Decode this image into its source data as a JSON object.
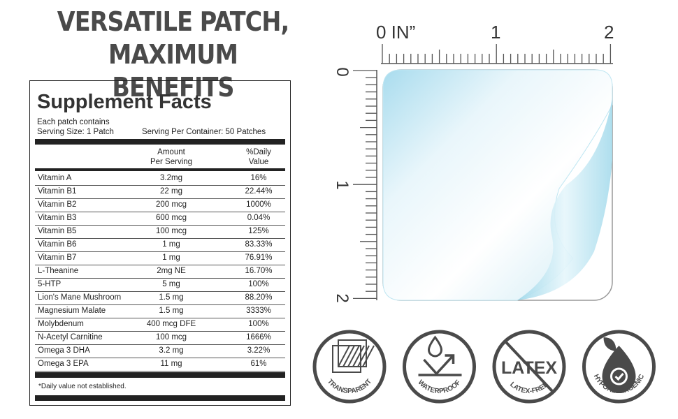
{
  "headline": {
    "line1": "VERSATILE PATCH,",
    "line2": "MAXIMUM BENEFITS"
  },
  "facts": {
    "title": "Supplement Facts",
    "each": "Each patch contains",
    "serving_size": "Serving Size: 1 Patch",
    "per_container": "Serving Per Container: 50 Patches",
    "col_amount": [
      "Amount",
      "Per Serving"
    ],
    "col_dv": [
      "%Daily",
      "Value"
    ],
    "rows": [
      [
        "Vitamin A",
        "3.2mg",
        "16%"
      ],
      [
        "Vitamin B1",
        "22 mg",
        "22.44%"
      ],
      [
        "Vitamin B2",
        "200 mcg",
        "1000%"
      ],
      [
        "Vitamin B3",
        "600 mcg",
        "0.04%"
      ],
      [
        "Vitamin B5",
        "100 mcg",
        "125%"
      ],
      [
        "Vitamin B6",
        "1 mg",
        "83.33%"
      ],
      [
        "Vitamin B7",
        "1 mg",
        "76.91%"
      ],
      [
        "L-Theanine",
        "2mg NE",
        "16.70%"
      ],
      [
        "5-HTP",
        "5 mg",
        "100%"
      ],
      [
        "Lion's Mane Mushroom",
        "1.5 mg",
        "88.20%"
      ],
      [
        "Magnesium Malate",
        "1.5 mg",
        "3333%"
      ],
      [
        "Molybdenum",
        "400 mcg DFE",
        "100%"
      ],
      [
        "N-Acetyl Carnitine",
        "100 mcg",
        "1666%"
      ],
      [
        "Omega 3 DHA",
        "3.2 mg",
        "3.22%"
      ],
      [
        "Omega 3 EPA",
        "11 mg",
        "61%"
      ]
    ],
    "footnote": "*Daily value not established."
  },
  "ruler": {
    "top_labels": [
      "0 IN”",
      "1",
      "2"
    ],
    "left_labels": [
      "0",
      "1",
      "2"
    ]
  },
  "badges": [
    {
      "icon": "transparent-squares-icon",
      "label": "TRANSPARENT"
    },
    {
      "icon": "water-drop-repel-icon",
      "label": "WATERPROOF"
    },
    {
      "icon": "latex-crossed-icon",
      "label": "LATEX-FREE",
      "inner": "LATEX"
    },
    {
      "icon": "leaf-drop-check-icon",
      "label": "HYPOALLERGENIC"
    }
  ],
  "colors": {
    "icon_gray": "#4a4a4a",
    "patch_blue": "#bfe6f2"
  }
}
